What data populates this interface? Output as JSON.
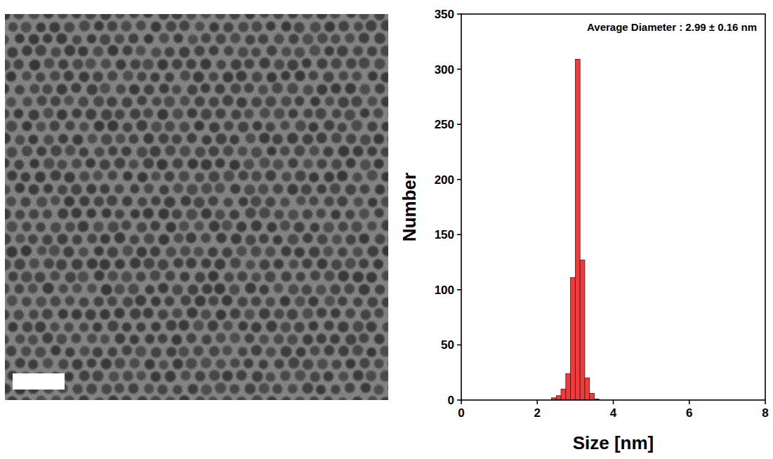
{
  "chart_data": {
    "type": "histogram",
    "annotation": "Average Diameter : 2.99 ± 0.16 nm",
    "x_label": "Size [nm]",
    "y_label": "Number",
    "bins": [
      2.375,
      2.5,
      2.625,
      2.75,
      2.875,
      3.0,
      3.125,
      3.25,
      3.375,
      3.5,
      3.625
    ],
    "values": [
      2,
      4,
      10,
      24,
      111,
      309,
      127,
      20,
      6,
      1
    ],
    "color": "#ee3b3b",
    "xlim": [
      0,
      8
    ],
    "xticks": [
      0,
      2,
      4,
      6,
      8
    ],
    "ylim": [
      0,
      350
    ],
    "yticks": [
      0,
      50,
      100,
      150,
      200,
      250,
      300,
      350
    ],
    "grid": false
  }
}
